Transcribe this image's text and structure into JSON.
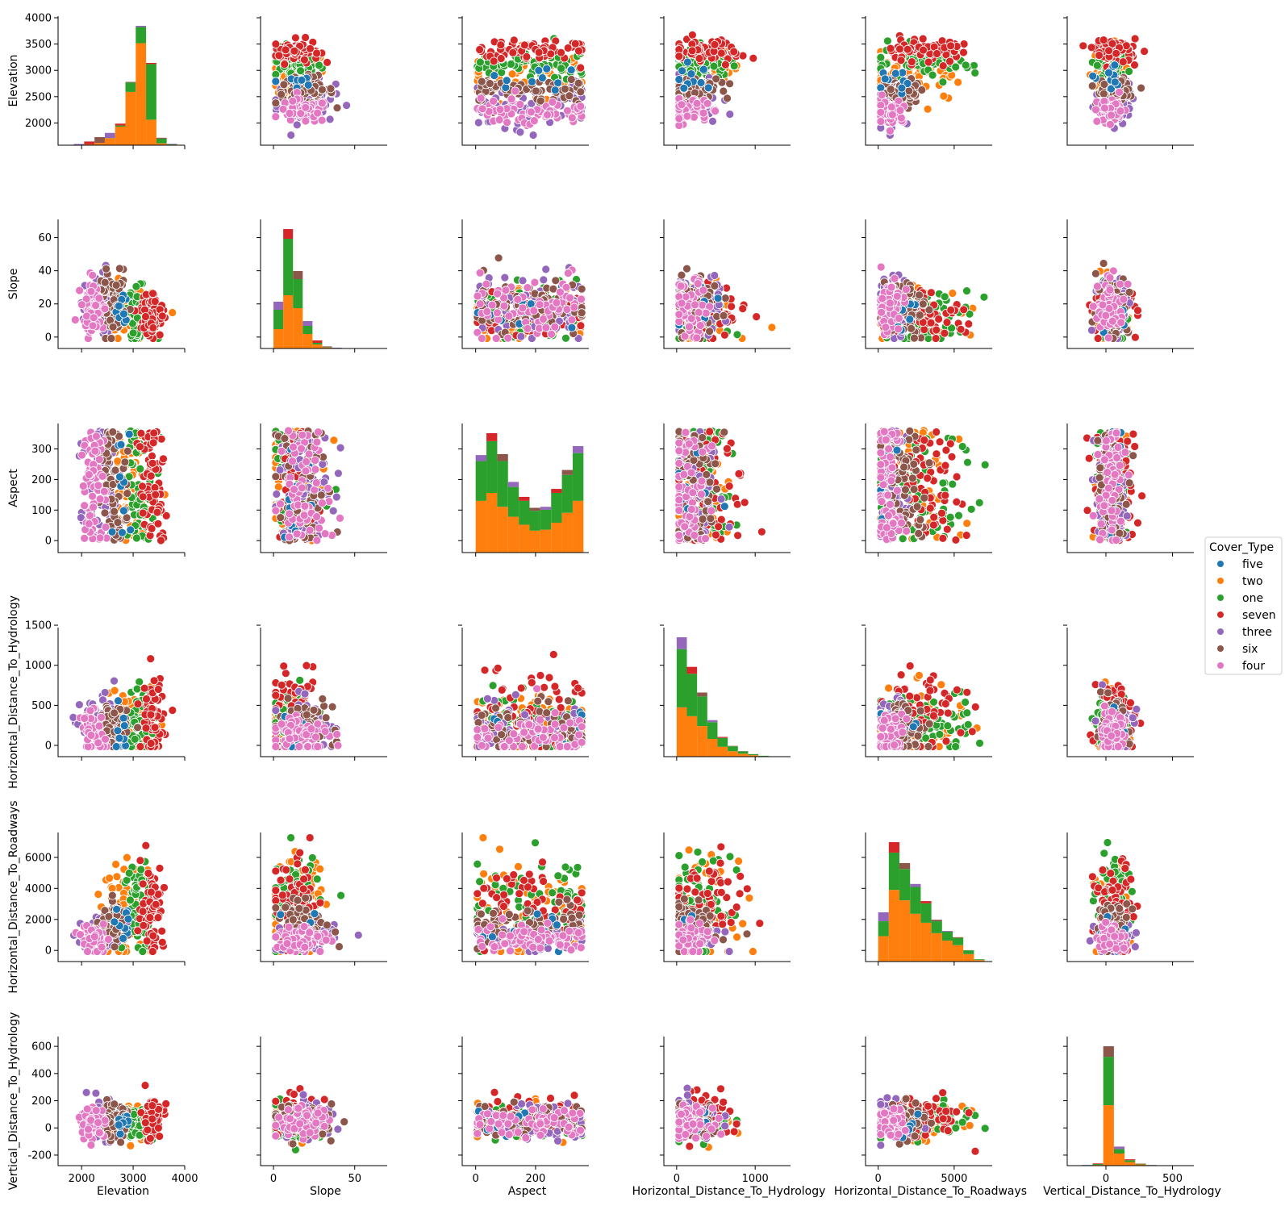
{
  "chart_data": {
    "type": "scatter",
    "kind": "pairplot",
    "variables": [
      {
        "name": "Elevation",
        "lim": [
          1700,
          4000
        ],
        "ticks": [
          2000,
          3000,
          4000
        ]
      },
      {
        "name": "Slope",
        "lim": [
          -3,
          70
        ],
        "ticks": [
          0,
          50
        ]
      },
      {
        "name": "Aspect",
        "lim": [
          -18,
          378
        ],
        "ticks": [
          0,
          200
        ]
      },
      {
        "name": "Horizontal_Distance_To_Hydrology",
        "lim": [
          -60,
          1450
        ],
        "ticks": [
          0,
          1000
        ]
      },
      {
        "name": "Horizontal_Distance_To_Roadways",
        "lim": [
          -300,
          7500
        ],
        "ticks": [
          0,
          5000
        ]
      },
      {
        "name": "Vertical_Distance_To_Hydrology",
        "lim": [
          -230,
          660
        ],
        "ticks": [
          0,
          500
        ]
      }
    ],
    "y_ticks": {
      "Elevation": [
        2000,
        2500,
        3000,
        3500,
        4000
      ],
      "Slope": [
        0,
        20,
        40,
        60
      ],
      "Aspect": [
        0,
        100,
        200,
        300
      ],
      "Horizontal_Distance_To_Hydrology": [
        0,
        500,
        1000,
        1500
      ],
      "Horizontal_Distance_To_Roadways": [
        0,
        2000,
        4000,
        6000
      ],
      "Vertical_Distance_To_Hydrology": [
        -200,
        0,
        200,
        400,
        600
      ]
    },
    "hue": "Cover_Type",
    "series": [
      {
        "name": "five",
        "color": "#1f77b4",
        "stats": {
          "Elevation": [
            2800,
            120
          ],
          "Slope": [
            15,
            7
          ],
          "Aspect": [
            150,
            90
          ],
          "Horizontal_Distance_To_Hydrology": [
            200,
            150
          ],
          "Horizontal_Distance_To_Roadways": [
            1300,
            700
          ],
          "Vertical_Distance_To_Hydrology": [
            50,
            50
          ]
        }
      },
      {
        "name": "two",
        "color": "#ff7f0e",
        "stats": {
          "Elevation": [
            2900,
            240
          ],
          "Slope": [
            14,
            9
          ],
          "Aspect": [
            150,
            110
          ],
          "Horizontal_Distance_To_Hydrology": [
            270,
            220
          ],
          "Horizontal_Distance_To_Roadways": [
            2400,
            1600
          ],
          "Vertical_Distance_To_Hydrology": [
            45,
            60
          ]
        }
      },
      {
        "name": "one",
        "color": "#2ca02c",
        "stats": {
          "Elevation": [
            3130,
            150
          ],
          "Slope": [
            13,
            8
          ],
          "Aspect": [
            155,
            110
          ],
          "Horizontal_Distance_To_Hydrology": [
            270,
            210
          ],
          "Horizontal_Distance_To_Roadways": [
            3000,
            1600
          ],
          "Vertical_Distance_To_Hydrology": [
            42,
            60
          ]
        }
      },
      {
        "name": "seven",
        "color": "#d62728",
        "stats": {
          "Elevation": [
            3370,
            110
          ],
          "Slope": [
            14,
            7
          ],
          "Aspect": [
            150,
            110
          ],
          "Horizontal_Distance_To_Hydrology": [
            350,
            260
          ],
          "Horizontal_Distance_To_Roadways": [
            2800,
            1400
          ],
          "Vertical_Distance_To_Hydrology": [
            70,
            80
          ]
        }
      },
      {
        "name": "three",
        "color": "#9467bd",
        "stats": {
          "Elevation": [
            2390,
            200
          ],
          "Slope": [
            20,
            9
          ],
          "Aspect": [
            170,
            110
          ],
          "Horizontal_Distance_To_Hydrology": [
            210,
            180
          ],
          "Horizontal_Distance_To_Roadways": [
            950,
            500
          ],
          "Vertical_Distance_To_Hydrology": [
            60,
            70
          ]
        }
      },
      {
        "name": "six",
        "color": "#8c564b",
        "stats": {
          "Elevation": [
            2620,
            130
          ],
          "Slope": [
            19,
            9
          ],
          "Aspect": [
            155,
            110
          ],
          "Horizontal_Distance_To_Hydrology": [
            210,
            160
          ],
          "Horizontal_Distance_To_Roadways": [
            1700,
            700
          ],
          "Vertical_Distance_To_Hydrology": [
            50,
            60
          ]
        }
      },
      {
        "name": "four",
        "color": "#e377c2",
        "stats": {
          "Elevation": [
            2220,
            110
          ],
          "Slope": [
            18,
            8
          ],
          "Aspect": [
            150,
            105
          ],
          "Horizontal_Distance_To_Hydrology": [
            150,
            130
          ],
          "Horizontal_Distance_To_Roadways": [
            750,
            450
          ],
          "Vertical_Distance_To_Hydrology": [
            40,
            50
          ]
        }
      }
    ],
    "histograms": {
      "Elevation": {
        "bins": [
          1850,
          2050,
          2250,
          2450,
          2650,
          2850,
          3050,
          3250,
          3450,
          3650,
          3850
        ],
        "stacks": {
          "two": [
            1,
            4,
            10,
            30,
            80,
            230,
            440,
            110,
            8,
            2
          ],
          "one": [
            0,
            0,
            0,
            1,
            5,
            40,
            70,
            240,
            20,
            2
          ],
          "other": [
            4,
            12,
            25,
            22,
            8,
            3,
            5,
            5,
            4,
            2
          ]
        }
      },
      "Slope": {
        "bins": [
          0,
          6,
          12,
          18,
          24,
          30,
          36,
          42,
          48,
          54,
          60,
          66
        ],
        "stacks": {
          "two": [
            120,
            330,
            250,
            90,
            25,
            6,
            2,
            1,
            0,
            0,
            0
          ],
          "one": [
            120,
            350,
            180,
            50,
            10,
            2,
            1,
            0,
            0,
            0,
            0
          ],
          "other": [
            50,
            60,
            50,
            30,
            15,
            5,
            2,
            1,
            0,
            0,
            0
          ]
        }
      },
      "Aspect": {
        "bins": [
          0,
          36,
          72,
          108,
          144,
          180,
          216,
          252,
          288,
          324,
          360
        ],
        "stacks": {
          "two": [
            260,
            300,
            230,
            180,
            140,
            110,
            115,
            150,
            200,
            260
          ],
          "one": [
            200,
            260,
            230,
            150,
            120,
            100,
            100,
            150,
            190,
            240
          ],
          "other": [
            30,
            40,
            35,
            25,
            20,
            15,
            15,
            20,
            25,
            35
          ]
        }
      },
      "Horizontal_Distance_To_Hydrology": {
        "bins": [
          0,
          130,
          260,
          390,
          520,
          650,
          780,
          910,
          1040,
          1170,
          1300
        ],
        "stacks": {
          "two": [
            500,
            410,
            310,
            180,
            100,
            55,
            30,
            15,
            5,
            2
          ],
          "one": [
            590,
            430,
            300,
            170,
            90,
            50,
            25,
            10,
            4,
            1
          ],
          "other": [
            120,
            70,
            40,
            20,
            10,
            4,
            2,
            1,
            0,
            0
          ]
        }
      },
      "Horizontal_Distance_To_Roadways": {
        "bins": [
          0,
          700,
          1400,
          2100,
          2800,
          3500,
          4200,
          4900,
          5600,
          6300,
          7000
        ],
        "stacks": {
          "two": [
            170,
            480,
            410,
            320,
            260,
            190,
            140,
            110,
            50,
            10
          ],
          "one": [
            100,
            250,
            210,
            180,
            130,
            80,
            60,
            50,
            25,
            5
          ],
          "other": [
            60,
            70,
            40,
            20,
            15,
            10,
            5,
            3,
            1,
            0
          ]
        }
      },
      "Vertical_Distance_To_Hydrology": {
        "bins": [
          -180,
          -100,
          -20,
          60,
          140,
          220,
          300,
          380,
          460,
          540,
          600
        ],
        "stacks": {
          "two": [
            8,
            25,
            2000,
            400,
            120,
            40,
            15,
            5,
            2,
            1
          ],
          "one": [
            10,
            30,
            1600,
            150,
            60,
            20,
            5,
            2,
            0,
            0
          ],
          "other": [
            5,
            20,
            350,
            80,
            30,
            10,
            4,
            1,
            0,
            0
          ]
        }
      }
    },
    "legend": {
      "title": "Cover_Type",
      "entries": [
        "five",
        "two",
        "one",
        "seven",
        "three",
        "six",
        "four"
      ],
      "placement": "right"
    }
  }
}
